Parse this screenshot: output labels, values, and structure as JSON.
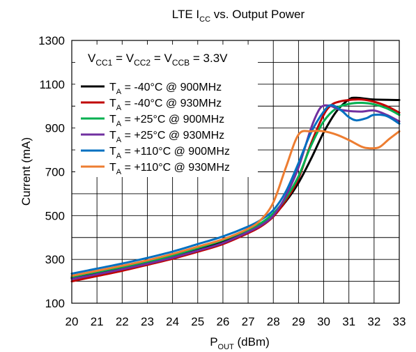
{
  "chart_data": {
    "type": "line",
    "title": {
      "main": "LTE I",
      "sub": "CC",
      "rest": " vs. Output Power"
    },
    "xlabel": {
      "main": "P",
      "sub": "OUT",
      "rest": " (dBm)"
    },
    "ylabel": "Current (mA)",
    "xlim": [
      20,
      33
    ],
    "ylim": [
      100,
      1300
    ],
    "xticks": [
      20,
      21,
      22,
      23,
      24,
      25,
      26,
      27,
      28,
      29,
      30,
      31,
      32,
      33
    ],
    "yticks": [
      100,
      300,
      500,
      700,
      900,
      1100,
      1300
    ],
    "grid": true,
    "legend_position": "top-left",
    "annotation": [
      {
        "t": "V",
        "s": ""
      },
      {
        "t": "",
        "s": "CC1"
      },
      {
        "t": " = V",
        "s": ""
      },
      {
        "t": "",
        "s": "CC2"
      },
      {
        "t": " = V",
        "s": ""
      },
      {
        "t": "",
        "s": "CCB"
      },
      {
        "t": " = 3.3V",
        "s": ""
      }
    ],
    "series": [
      {
        "name": "T = -40°C @ 900MHz",
        "label_main": "T",
        "label_sub": "A",
        "label_rest": " = -40°C @ 900MHz",
        "color": "#000000",
        "x": [
          20,
          21,
          22,
          23,
          24,
          25,
          26,
          27,
          27.5,
          28,
          28.5,
          29,
          29.5,
          30,
          30.5,
          31,
          31.3,
          32,
          33
        ],
        "y": [
          215,
          237,
          259,
          284,
          311,
          345,
          380,
          428,
          458,
          500,
          565,
          650,
          760,
          880,
          975,
          1030,
          1038,
          1030,
          1028
        ]
      },
      {
        "name": "T = -40°C @ 930MHz",
        "label_main": "T",
        "label_sub": "A",
        "label_rest": " = -40°C @ 930MHz",
        "color": "#c00000",
        "x": [
          20,
          21,
          22,
          23,
          24,
          25,
          26,
          27,
          27.5,
          28,
          28.5,
          29,
          29.5,
          30,
          30.3,
          30.6,
          31,
          31.5,
          32,
          32.5,
          33
        ],
        "y": [
          200,
          224,
          248,
          275,
          303,
          335,
          370,
          420,
          450,
          495,
          570,
          670,
          830,
          960,
          1005,
          1020,
          1028,
          1030,
          1020,
          1000,
          970
        ]
      },
      {
        "name": "T = +25°C @ 900MHz",
        "label_main": "T",
        "label_sub": "A",
        "label_rest": " = +25°C @ 900MHz",
        "color": "#00b050",
        "x": [
          20,
          21,
          22,
          23,
          24,
          25,
          26,
          27,
          27.5,
          28,
          28.5,
          29,
          29.5,
          30,
          30.5,
          31,
          31.5,
          32,
          32.5,
          33
        ],
        "y": [
          220,
          243,
          265,
          290,
          318,
          352,
          388,
          435,
          465,
          510,
          580,
          680,
          820,
          930,
          990,
          1010,
          1015,
          1008,
          990,
          960
        ]
      },
      {
        "name": "T = +25°C @ 930MHz",
        "label_main": "T",
        "label_sub": "A",
        "label_rest": " = +25°C @ 930MHz",
        "color": "#7030a0",
        "x": [
          20,
          21,
          22,
          23,
          24,
          25,
          26,
          27,
          27.5,
          28,
          28.5,
          29,
          29.5,
          29.8,
          30,
          30.3,
          30.6,
          31,
          31.5,
          32,
          32.5,
          33
        ],
        "y": [
          210,
          232,
          255,
          280,
          308,
          340,
          375,
          425,
          455,
          500,
          590,
          720,
          900,
          980,
          1002,
          1000,
          985,
          978,
          975,
          980,
          960,
          930
        ]
      },
      {
        "name": "T = +110°C @ 900MHz",
        "label_main": "T",
        "label_sub": "A",
        "label_rest": " = +110°C @ 900MHz",
        "color": "#0070c0",
        "x": [
          20,
          21,
          22,
          23,
          24,
          25,
          26,
          27,
          27.5,
          28,
          28.5,
          29,
          29.5,
          30,
          30.3,
          30.7,
          31,
          31.3,
          31.7,
          32,
          32.5,
          33
        ],
        "y": [
          235,
          258,
          281,
          307,
          336,
          370,
          405,
          450,
          480,
          525,
          610,
          740,
          880,
          975,
          1005,
          980,
          950,
          935,
          945,
          960,
          955,
          920
        ]
      },
      {
        "name": "T = +110°C @ 930MHz",
        "label_main": "T",
        "label_sub": "A",
        "label_rest": " = +110°C @ 930MHz",
        "color": "#ed7d31",
        "x": [
          20,
          21,
          22,
          23,
          24,
          25,
          26,
          27,
          27.5,
          28,
          28.5,
          29,
          29.5,
          30,
          30.5,
          31,
          31.5,
          31.8,
          32.2,
          32.6,
          33
        ],
        "y": [
          225,
          248,
          271,
          296,
          325,
          358,
          392,
          440,
          480,
          560,
          720,
          870,
          885,
          885,
          870,
          845,
          815,
          808,
          812,
          850,
          885
        ]
      }
    ]
  }
}
